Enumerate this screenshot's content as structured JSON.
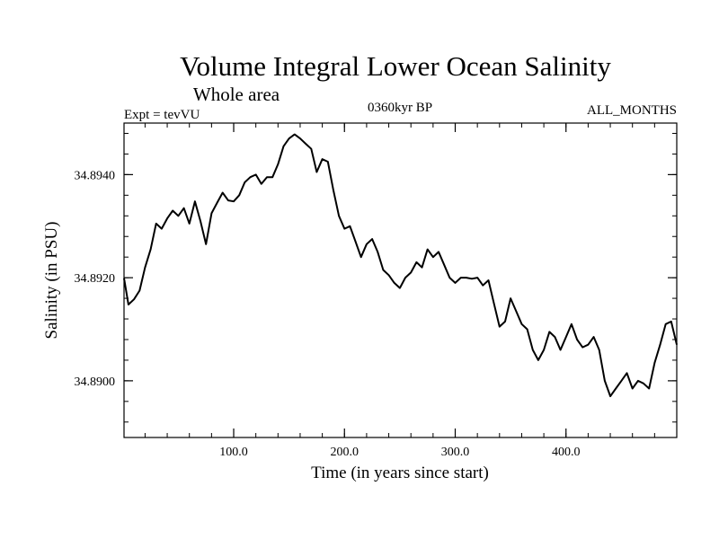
{
  "chart_data": {
    "type": "line",
    "title": "Volume Integral Lower Ocean Salinity",
    "subtitle": "Whole area",
    "annotations": {
      "left": "Expt = tevVU",
      "center": "0360kyr BP",
      "right": "ALL_MONTHS"
    },
    "xlabel": "Time (in years since start)",
    "ylabel": "Salinity (in PSU)",
    "xlim": [
      1,
      500
    ],
    "ylim": [
      34.8889,
      34.895
    ],
    "x_ticks": [
      100,
      200,
      300,
      400
    ],
    "x_tick_labels": [
      "100.0",
      "200.0",
      "300.0",
      "400.0"
    ],
    "y_ticks": [
      34.89,
      34.892,
      34.894
    ],
    "y_tick_labels": [
      "34.8900",
      "34.8920",
      "34.8940"
    ],
    "x_minor_step": 20,
    "y_minor_step": 0.0004,
    "grid": false,
    "legend": "none",
    "series": [
      {
        "points": [
          [
            1,
            34.89199
          ],
          [
            5,
            34.89148
          ],
          [
            10,
            34.89158
          ],
          [
            15,
            34.89175
          ],
          [
            20,
            34.8922
          ],
          [
            25,
            34.89255
          ],
          [
            30,
            34.89305
          ],
          [
            35,
            34.89295
          ],
          [
            40,
            34.89315
          ],
          [
            45,
            34.8933
          ],
          [
            50,
            34.8932
          ],
          [
            55,
            34.89335
          ],
          [
            60,
            34.89305
          ],
          [
            65,
            34.89348
          ],
          [
            70,
            34.8931
          ],
          [
            75,
            34.89265
          ],
          [
            80,
            34.89325
          ],
          [
            85,
            34.89345
          ],
          [
            90,
            34.89365
          ],
          [
            95,
            34.8935
          ],
          [
            100,
            34.89348
          ],
          [
            105,
            34.8936
          ],
          [
            110,
            34.89385
          ],
          [
            115,
            34.89395
          ],
          [
            120,
            34.894
          ],
          [
            125,
            34.89382
          ],
          [
            130,
            34.89395
          ],
          [
            135,
            34.89395
          ],
          [
            140,
            34.8942
          ],
          [
            145,
            34.89455
          ],
          [
            150,
            34.8947
          ],
          [
            155,
            34.89478
          ],
          [
            160,
            34.8947
          ],
          [
            165,
            34.8946
          ],
          [
            170,
            34.8945
          ],
          [
            175,
            34.89405
          ],
          [
            180,
            34.8943
          ],
          [
            185,
            34.89425
          ],
          [
            190,
            34.8937
          ],
          [
            195,
            34.8932
          ],
          [
            200,
            34.89295
          ],
          [
            205,
            34.893
          ],
          [
            210,
            34.8927
          ],
          [
            215,
            34.8924
          ],
          [
            220,
            34.89265
          ],
          [
            225,
            34.89275
          ],
          [
            230,
            34.8925
          ],
          [
            235,
            34.89215
          ],
          [
            240,
            34.89205
          ],
          [
            245,
            34.8919
          ],
          [
            250,
            34.8918
          ],
          [
            255,
            34.892
          ],
          [
            260,
            34.8921
          ],
          [
            265,
            34.8923
          ],
          [
            270,
            34.8922
          ],
          [
            275,
            34.89255
          ],
          [
            280,
            34.8924
          ],
          [
            285,
            34.8925
          ],
          [
            290,
            34.89225
          ],
          [
            295,
            34.892
          ],
          [
            300,
            34.8919
          ],
          [
            305,
            34.892
          ],
          [
            310,
            34.892
          ],
          [
            315,
            34.89198
          ],
          [
            320,
            34.892
          ],
          [
            325,
            34.89185
          ],
          [
            330,
            34.89195
          ],
          [
            335,
            34.8915
          ],
          [
            340,
            34.89105
          ],
          [
            345,
            34.89115
          ],
          [
            350,
            34.8916
          ],
          [
            355,
            34.89135
          ],
          [
            360,
            34.8911
          ],
          [
            365,
            34.891
          ],
          [
            370,
            34.8906
          ],
          [
            375,
            34.8904
          ],
          [
            380,
            34.8906
          ],
          [
            385,
            34.89095
          ],
          [
            390,
            34.89085
          ],
          [
            395,
            34.8906
          ],
          [
            400,
            34.89085
          ],
          [
            405,
            34.8911
          ],
          [
            410,
            34.8908
          ],
          [
            415,
            34.89065
          ],
          [
            420,
            34.8907
          ],
          [
            425,
            34.89085
          ],
          [
            430,
            34.8906
          ],
          [
            435,
            34.89
          ],
          [
            440,
            34.8897
          ],
          [
            445,
            34.88985
          ],
          [
            450,
            34.89
          ],
          [
            455,
            34.89015
          ],
          [
            460,
            34.88985
          ],
          [
            465,
            34.89
          ],
          [
            470,
            34.88995
          ],
          [
            475,
            34.88985
          ],
          [
            480,
            34.89035
          ],
          [
            485,
            34.8907
          ],
          [
            490,
            34.8911
          ],
          [
            495,
            34.89115
          ],
          [
            500,
            34.8907
          ]
        ]
      }
    ]
  }
}
